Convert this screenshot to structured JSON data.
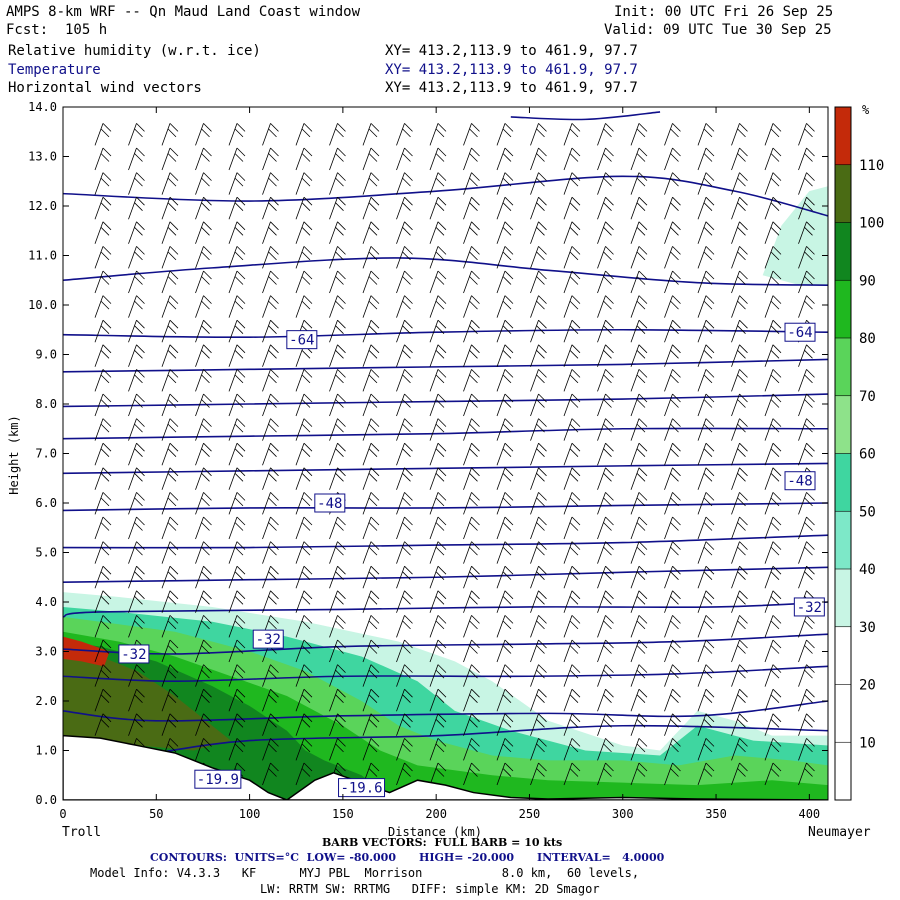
{
  "header": {
    "title": "AMPS 8-km WRF -- Qn Maud Land Coast window",
    "fcst": "Fcst:  105 h",
    "init": "Init: 00 UTC Fri 26 Sep 25",
    "valid": "Valid: 09 UTC Tue 30 Sep 25",
    "field1": "Relative humidity (w.r.t. ice)",
    "field2": "Temperature",
    "field3": "Horizontal wind vectors",
    "xy1": "XY= 413.2,113.9 to 461.9, 97.7",
    "xy2": "XY= 413.2,113.9 to 461.9, 97.7",
    "xy3": "XY= 413.2,113.9 to 461.9, 97.7"
  },
  "footer": {
    "barb": "BARB VECTORS:  FULL BARB = 10 kts",
    "contours": "CONTOURS:  UNITS=°C  LOW= -80.000      HIGH= -20.000      INTERVAL=   4.0000",
    "model1": "Model Info: V4.3.3   KF      MYJ PBL  Morrison           8.0 km,  60 levels,",
    "model2": "LW: RRTM SW: RRTMG   DIFF: simple KM: 2D Smagor"
  },
  "chart_data": {
    "type": "heatmap",
    "xlabel": "Distance (km)",
    "ylabel": "Height (km)",
    "xlim": [
      0,
      410
    ],
    "ylim": [
      0,
      14
    ],
    "x_ticks": [
      0,
      50,
      100,
      150,
      200,
      250,
      300,
      350,
      400
    ],
    "y_ticks": [
      "0.0",
      "1.0",
      "2.0",
      "3.0",
      "4.0",
      "5.0",
      "6.0",
      "7.0",
      "8.0",
      "9.0",
      "10.0",
      "11.0",
      "12.0",
      "13.0",
      "14.0"
    ],
    "left_end_label": "Troll",
    "right_end_label": "Neumayer",
    "colorbar": {
      "unit": "%",
      "levels": [
        10,
        20,
        30,
        40,
        50,
        60,
        70,
        80,
        90,
        100,
        110
      ],
      "colors": [
        "#ffffff",
        "#ffffff",
        "#ffffff",
        "#c8f5e4",
        "#7de8c8",
        "#3fd6a0",
        "#8ee28a",
        "#5ad45a",
        "#1fb81f",
        "#11861f",
        "#4a6b14",
        "#c42a0a"
      ]
    },
    "contour_labels": [
      {
        "text": "-64",
        "x": 128,
        "y": 9.3
      },
      {
        "text": "-64",
        "x": 395,
        "y": 9.45
      },
      {
        "text": "-48",
        "x": 143,
        "y": 6.0
      },
      {
        "text": "-48",
        "x": 395,
        "y": 6.45
      },
      {
        "text": "-32",
        "x": 110,
        "y": 3.25
      },
      {
        "text": "-32",
        "x": 400,
        "y": 3.9
      },
      {
        "text": "-32",
        "x": 38,
        "y": 2.95
      },
      {
        "text": "-19.9",
        "x": 83,
        "y": 0.42
      },
      {
        "text": "-19.6",
        "x": 160,
        "y": 0.25
      }
    ],
    "isotherms": [
      [
        [
          0,
          0.8
        ],
        [
          40,
          0.9
        ],
        [
          100,
          1.2
        ],
        [
          200,
          1.3
        ],
        [
          300,
          1.5
        ],
        [
          410,
          1.4
        ]
      ],
      [
        [
          0,
          1.8
        ],
        [
          50,
          1.6
        ],
        [
          150,
          1.7
        ],
        [
          260,
          1.75
        ],
        [
          340,
          1.7
        ],
        [
          410,
          2.0
        ]
      ],
      [
        [
          0,
          2.5
        ],
        [
          60,
          2.4
        ],
        [
          150,
          2.5
        ],
        [
          250,
          2.5
        ],
        [
          330,
          2.55
        ],
        [
          410,
          2.7
        ]
      ],
      [
        [
          0,
          3.05
        ],
        [
          60,
          2.95
        ],
        [
          150,
          3.1
        ],
        [
          250,
          3.15
        ],
        [
          330,
          3.2
        ],
        [
          410,
          3.35
        ]
      ],
      [
        [
          0,
          3.7
        ],
        [
          20,
          3.8
        ],
        [
          150,
          3.85
        ],
        [
          250,
          3.9
        ],
        [
          350,
          3.9
        ],
        [
          410,
          4.0
        ]
      ],
      [
        [
          0,
          4.4
        ],
        [
          100,
          4.45
        ],
        [
          200,
          4.5
        ],
        [
          300,
          4.6
        ],
        [
          410,
          4.7
        ]
      ],
      [
        [
          0,
          5.1
        ],
        [
          100,
          5.1
        ],
        [
          200,
          5.15
        ],
        [
          300,
          5.2
        ],
        [
          410,
          5.35
        ]
      ],
      [
        [
          0,
          5.85
        ],
        [
          100,
          5.9
        ],
        [
          200,
          5.9
        ],
        [
          300,
          5.95
        ],
        [
          410,
          6.0
        ]
      ],
      [
        [
          0,
          6.6
        ],
        [
          100,
          6.65
        ],
        [
          200,
          6.7
        ],
        [
          300,
          6.75
        ],
        [
          410,
          6.8
        ]
      ],
      [
        [
          0,
          7.3
        ],
        [
          100,
          7.35
        ],
        [
          200,
          7.4
        ],
        [
          300,
          7.5
        ],
        [
          410,
          7.5
        ]
      ],
      [
        [
          0,
          7.95
        ],
        [
          100,
          8.0
        ],
        [
          200,
          8.05
        ],
        [
          300,
          8.1
        ],
        [
          410,
          8.2
        ]
      ],
      [
        [
          0,
          8.65
        ],
        [
          100,
          8.7
        ],
        [
          200,
          8.75
        ],
        [
          300,
          8.8
        ],
        [
          410,
          8.9
        ]
      ],
      [
        [
          0,
          9.4
        ],
        [
          100,
          9.35
        ],
        [
          200,
          9.45
        ],
        [
          300,
          9.5
        ],
        [
          410,
          9.45
        ]
      ],
      [
        [
          0,
          10.5
        ],
        [
          80,
          10.75
        ],
        [
          180,
          10.95
        ],
        [
          260,
          10.7
        ],
        [
          340,
          10.45
        ],
        [
          410,
          10.4
        ]
      ],
      [
        [
          0,
          12.25
        ],
        [
          100,
          12.1
        ],
        [
          200,
          12.3
        ],
        [
          300,
          12.6
        ],
        [
          360,
          12.3
        ],
        [
          410,
          11.8
        ]
      ],
      [
        [
          240,
          13.8
        ],
        [
          280,
          13.75
        ],
        [
          320,
          13.9
        ]
      ]
    ],
    "terrain": [
      [
        0,
        1.3
      ],
      [
        20,
        1.25
      ],
      [
        40,
        1.1
      ],
      [
        60,
        0.95
      ],
      [
        80,
        0.65
      ],
      [
        100,
        0.4
      ],
      [
        110,
        0.15
      ],
      [
        120,
        0.0
      ],
      [
        135,
        0.4
      ],
      [
        145,
        0.55
      ],
      [
        160,
        0.35
      ],
      [
        175,
        0.15
      ],
      [
        190,
        0.4
      ],
      [
        205,
        0.3
      ],
      [
        220,
        0.15
      ],
      [
        240,
        0.05
      ],
      [
        260,
        0.02
      ],
      [
        300,
        0.05
      ],
      [
        340,
        0.02
      ],
      [
        410,
        0.0
      ]
    ]
  }
}
